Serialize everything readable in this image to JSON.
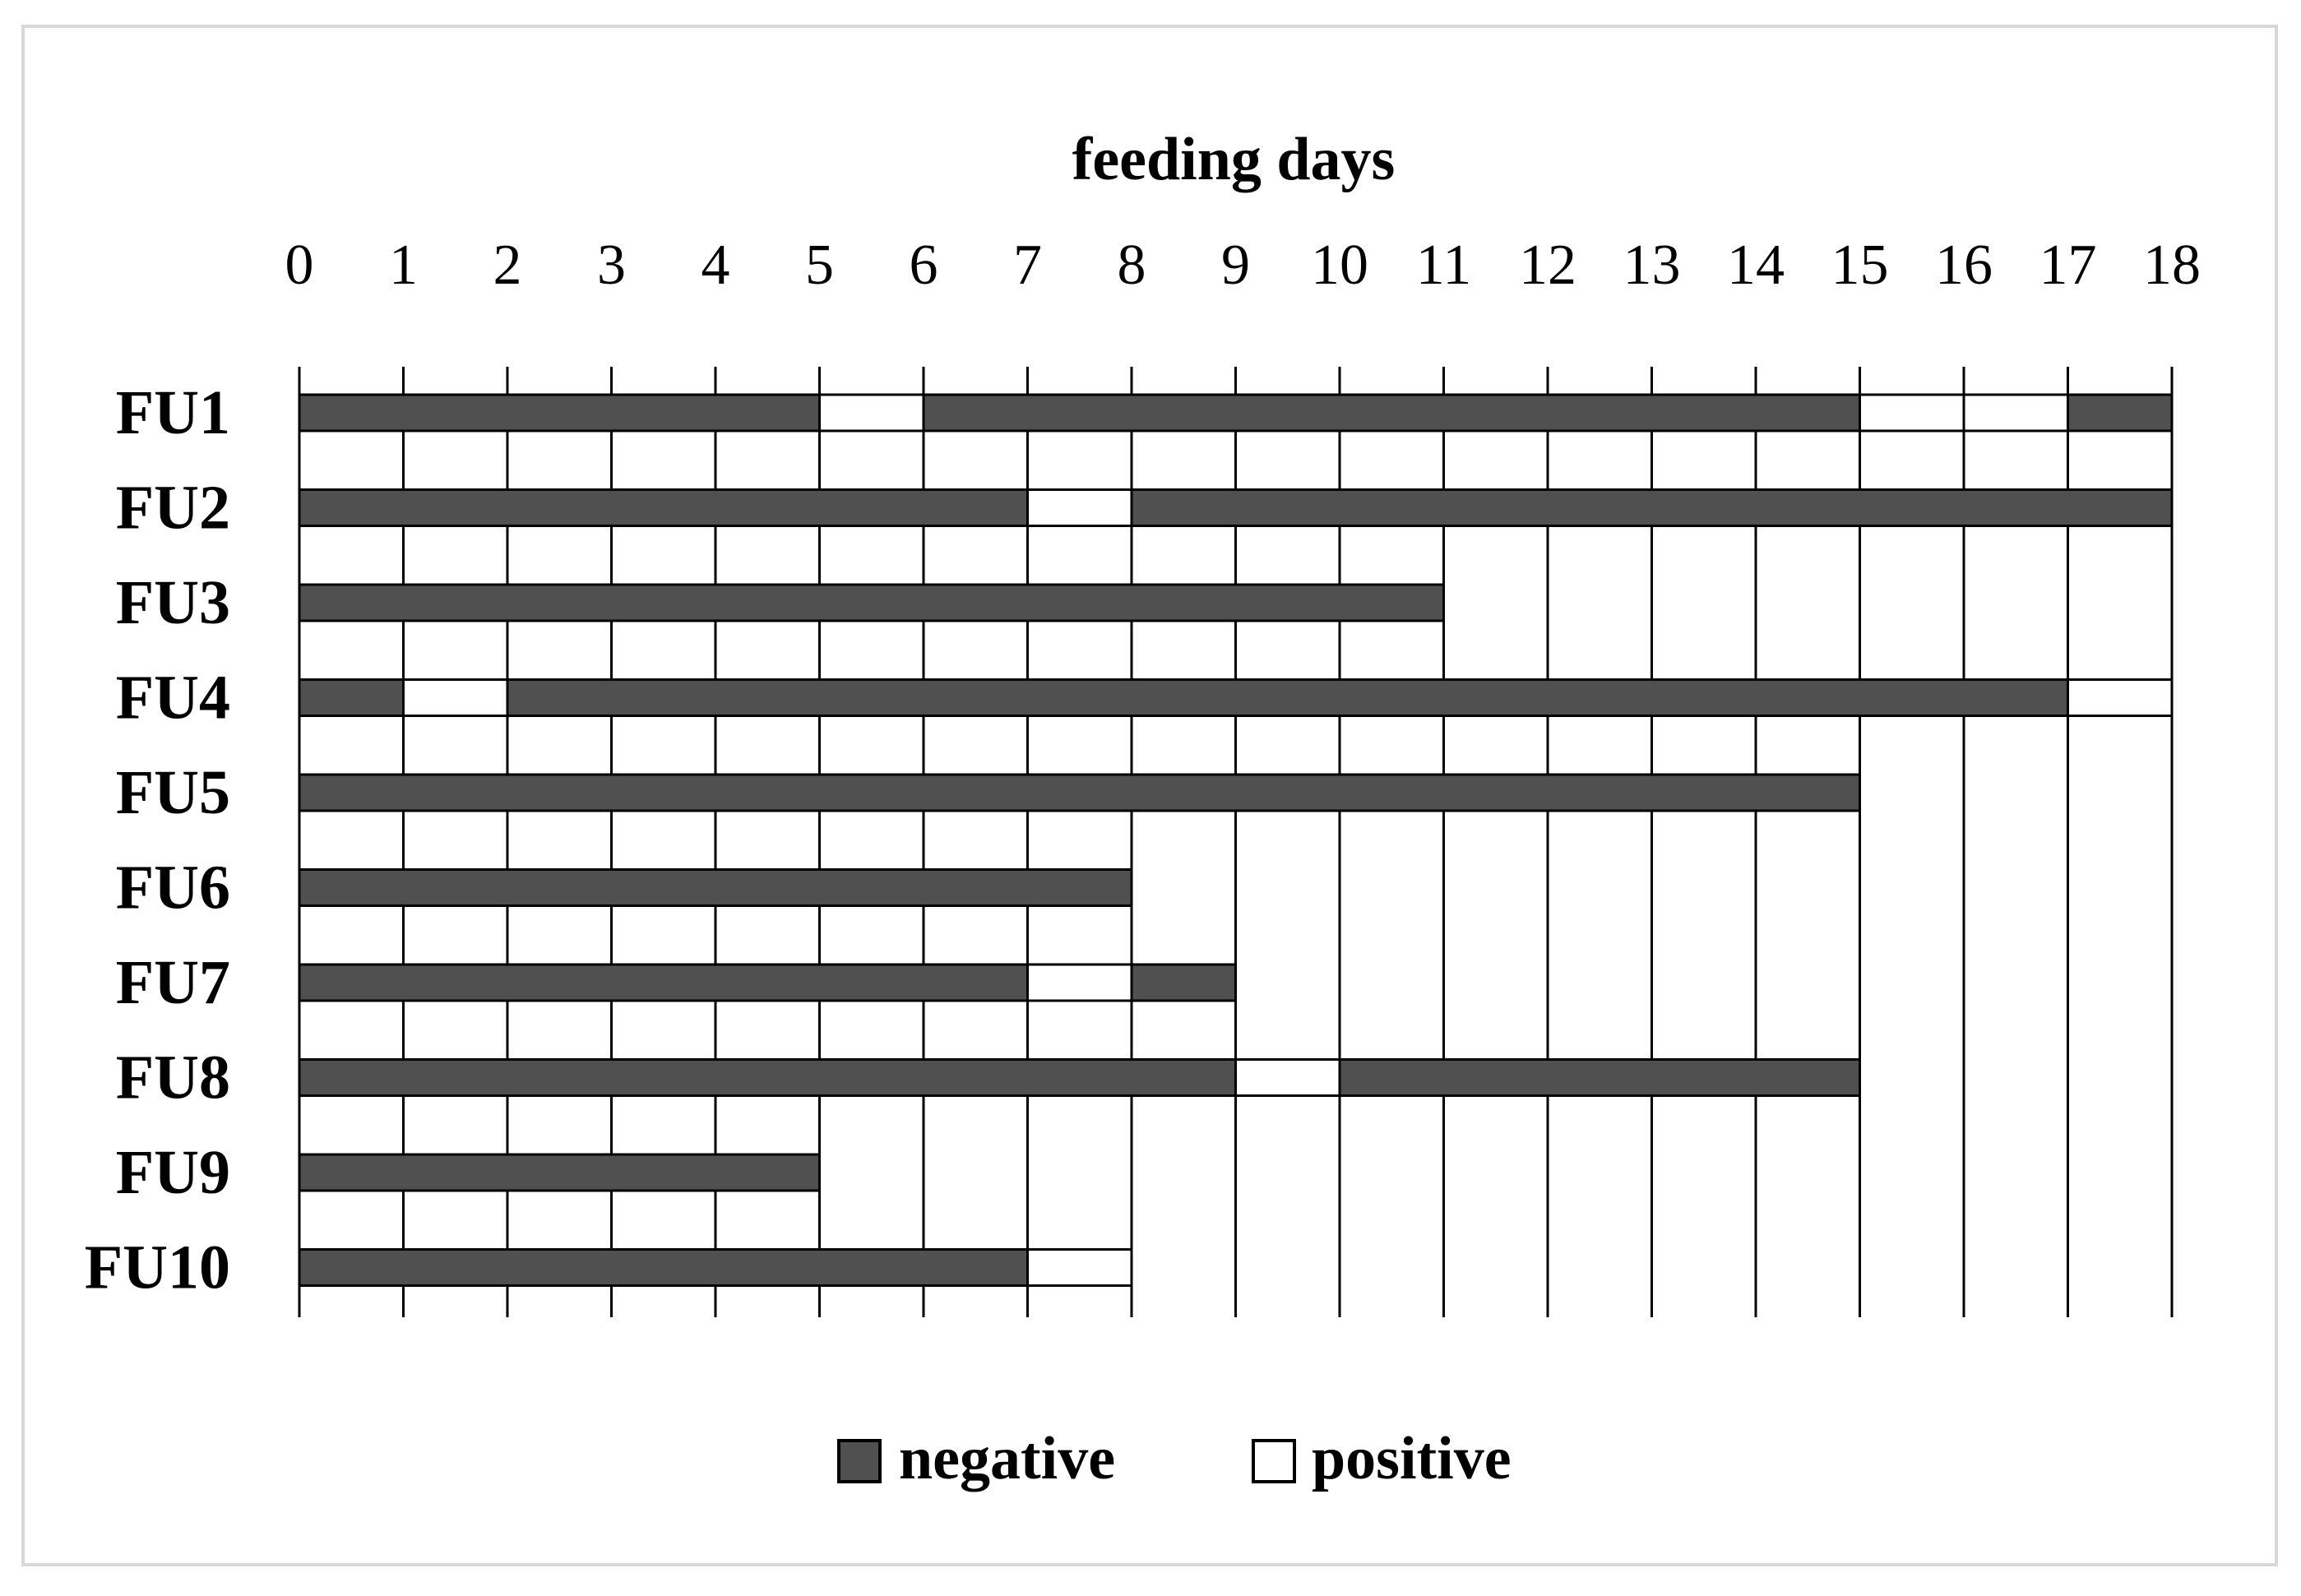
{
  "chart_data": {
    "type": "bar",
    "orientation": "horizontal",
    "stacked": true,
    "title": "feeding days",
    "x_ticks": [
      "0",
      "1",
      "2",
      "3",
      "4",
      "5",
      "6",
      "7",
      "8",
      "9",
      "10",
      "11",
      "12",
      "13",
      "14",
      "15",
      "16",
      "17",
      "18"
    ],
    "xlim": [
      0,
      18
    ],
    "grid": "vertical lines at each day",
    "categories": [
      "FU1",
      "FU2",
      "FU3",
      "FU4",
      "FU5",
      "FU6",
      "FU7",
      "FU8",
      "FU9",
      "FU10"
    ],
    "legend": {
      "position": "bottom-center",
      "entries": [
        {
          "label": "negative",
          "color": "#505050"
        },
        {
          "label": "positive",
          "color": "#ffffff"
        }
      ]
    },
    "rows": [
      {
        "unit": "FU1",
        "segments": [
          {
            "start": 0,
            "end": 5,
            "result": "negative"
          },
          {
            "start": 5,
            "end": 6,
            "result": "positive"
          },
          {
            "start": 6,
            "end": 15,
            "result": "negative"
          },
          {
            "start": 15,
            "end": 16,
            "result": "positive"
          },
          {
            "start": 16,
            "end": 17,
            "result": "positive"
          },
          {
            "start": 17,
            "end": 18,
            "result": "negative"
          }
        ]
      },
      {
        "unit": "FU2",
        "segments": [
          {
            "start": 0,
            "end": 7,
            "result": "negative"
          },
          {
            "start": 7,
            "end": 8,
            "result": "positive"
          },
          {
            "start": 8,
            "end": 18,
            "result": "negative"
          }
        ]
      },
      {
        "unit": "FU3",
        "segments": [
          {
            "start": 0,
            "end": 11,
            "result": "negative"
          }
        ]
      },
      {
        "unit": "FU4",
        "segments": [
          {
            "start": 0,
            "end": 1,
            "result": "negative"
          },
          {
            "start": 1,
            "end": 2,
            "result": "positive"
          },
          {
            "start": 2,
            "end": 17,
            "result": "negative"
          },
          {
            "start": 17,
            "end": 18,
            "result": "positive"
          }
        ]
      },
      {
        "unit": "FU5",
        "segments": [
          {
            "start": 0,
            "end": 15,
            "result": "negative"
          }
        ]
      },
      {
        "unit": "FU6",
        "segments": [
          {
            "start": 0,
            "end": 8,
            "result": "negative"
          }
        ]
      },
      {
        "unit": "FU7",
        "segments": [
          {
            "start": 0,
            "end": 7,
            "result": "negative"
          },
          {
            "start": 7,
            "end": 8,
            "result": "positive"
          },
          {
            "start": 8,
            "end": 9,
            "result": "negative"
          }
        ]
      },
      {
        "unit": "FU8",
        "segments": [
          {
            "start": 0,
            "end": 9,
            "result": "negative"
          },
          {
            "start": 9,
            "end": 10,
            "result": "positive"
          },
          {
            "start": 10,
            "end": 15,
            "result": "negative"
          }
        ]
      },
      {
        "unit": "FU9",
        "segments": [
          {
            "start": 0,
            "end": 5,
            "result": "negative"
          }
        ]
      },
      {
        "unit": "FU10",
        "segments": [
          {
            "start": 0,
            "end": 7,
            "result": "negative"
          },
          {
            "start": 7,
            "end": 8,
            "result": "positive"
          }
        ]
      }
    ]
  }
}
